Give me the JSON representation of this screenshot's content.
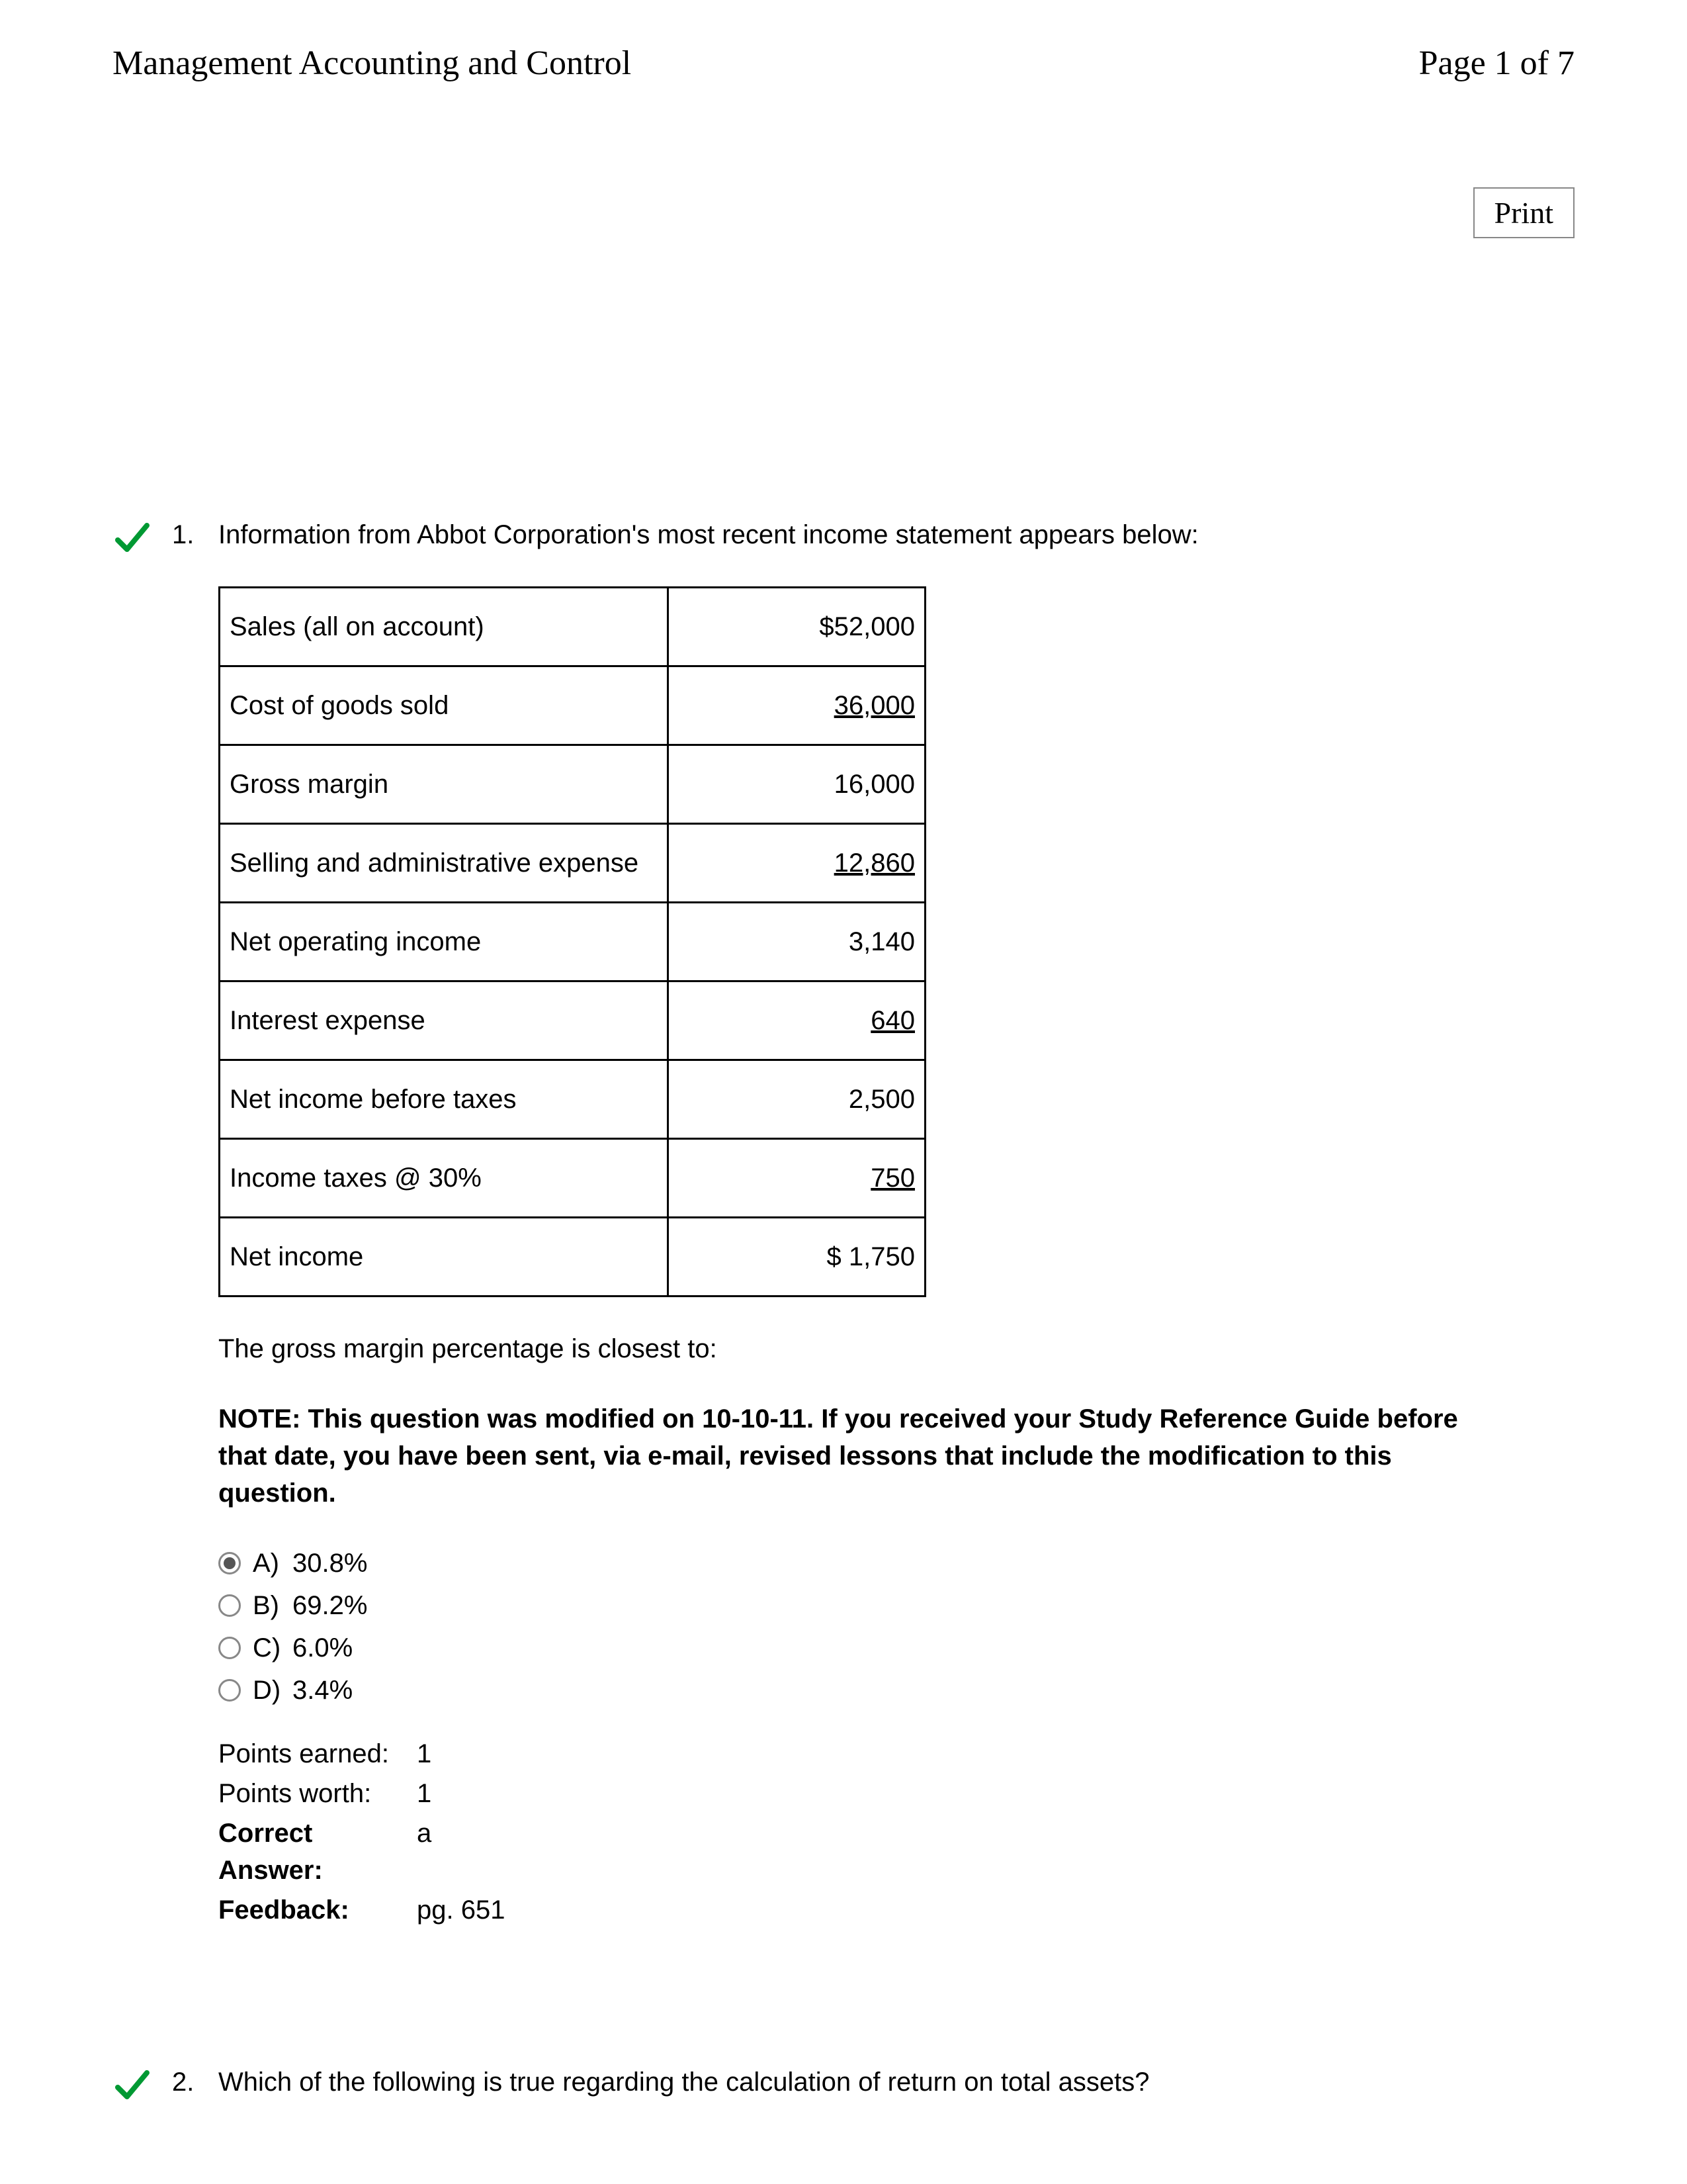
{
  "header": {
    "title": "Management Accounting and Control",
    "page_label": "Page 1 of 7",
    "print_label": "Print"
  },
  "colors": {
    "check": "#009933",
    "border": "#000000",
    "radio_border": "#888888",
    "text": "#000000",
    "background": "#ffffff"
  },
  "questions": [
    {
      "number": "1.",
      "correct": true,
      "prompt": "Information from Abbot Corporation's most recent income statement appears below:",
      "table": {
        "rows": [
          {
            "label": "Sales (all on account)",
            "value": "$52,000",
            "underline": false
          },
          {
            "label": "Cost of goods sold",
            "value": "36,000",
            "underline": true
          },
          {
            "label": "Gross margin",
            "value": "16,000",
            "underline": false
          },
          {
            "label": "Selling and administrative expense",
            "value": "12,860",
            "underline": true
          },
          {
            "label": "Net operating income",
            "value": "3,140",
            "underline": false
          },
          {
            "label": "Interest expense",
            "value": "640",
            "underline": true
          },
          {
            "label": "Net income before taxes",
            "value": "2,500",
            "underline": false
          },
          {
            "label": "Income taxes @ 30%",
            "value": "750",
            "underline": true
          },
          {
            "label": "Net income",
            "value": "$ 1,750",
            "underline": false
          }
        ]
      },
      "followup": "The gross margin percentage is closest to:",
      "note": "NOTE: This question was modified on 10-10-11. If you received your Study Reference Guide before that date, you have been sent, via e-mail, revised lessons that include the modification to this question.",
      "choices": [
        {
          "letter": "A)",
          "text": "30.8%",
          "selected": true
        },
        {
          "letter": "B)",
          "text": "69.2%",
          "selected": false
        },
        {
          "letter": "C)",
          "text": "6.0%",
          "selected": false
        },
        {
          "letter": "D)",
          "text": "3.4%",
          "selected": false
        }
      ],
      "meta": {
        "points_earned_label": "Points earned:",
        "points_earned_value": "1",
        "points_worth_label": "Points worth:",
        "points_worth_value": "1",
        "correct_label": "Correct Answer:",
        "correct_value": "a",
        "feedback_label": "Feedback:",
        "feedback_value": "pg. 651"
      }
    },
    {
      "number": "2.",
      "correct": true,
      "prompt": "Which of the following is true regarding the calculation of return on total assets?"
    }
  ]
}
